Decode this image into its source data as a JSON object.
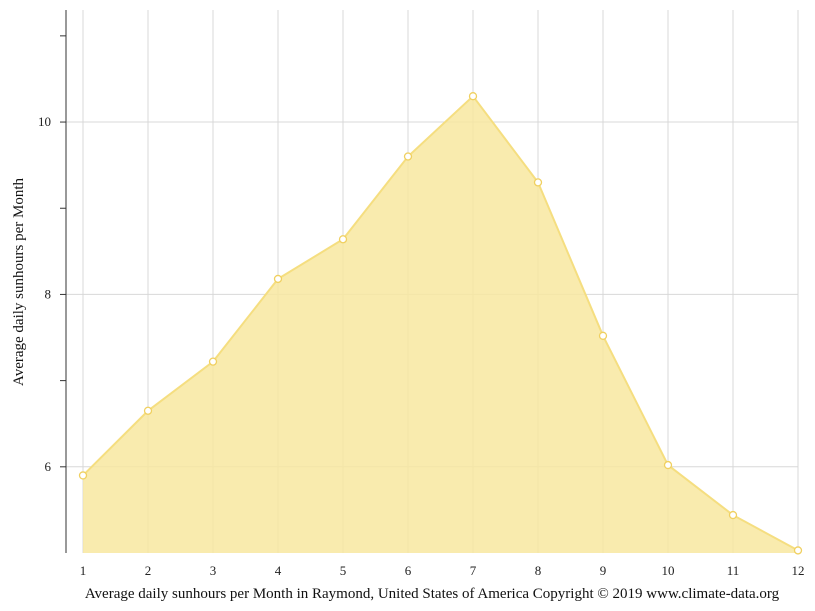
{
  "chart_data": {
    "type": "area",
    "x": [
      1,
      2,
      3,
      4,
      5,
      6,
      7,
      8,
      9,
      10,
      11,
      12
    ],
    "x_tick_labels": [
      "1",
      "2",
      "3",
      "4",
      "5",
      "6",
      "7",
      "8",
      "9",
      "10",
      "11",
      "12"
    ],
    "series": [
      {
        "values": [
          5.9,
          6.65,
          7.22,
          8.18,
          8.64,
          9.6,
          10.3,
          9.3,
          7.52,
          6.02,
          5.44,
          5.03
        ]
      }
    ],
    "ylabel": "Average daily sunhours per Month",
    "caption": "Average daily sunhours per Month in Raymond, United States of America Copyright © 2019 www.climate-data.org",
    "ylim": [
      5,
      11.3
    ],
    "xlim": [
      1,
      12
    ],
    "y_ticks": [
      6,
      8,
      10
    ],
    "y_tick_labels": [
      "6",
      "8",
      "10"
    ],
    "y_minor_ticks": [
      7,
      9,
      11
    ],
    "grid": true,
    "colors": {
      "fill": "#f8e8a0",
      "line": "#f5de80",
      "marker_stroke": "#f0d060",
      "marker_fill": "#ffffff",
      "grid": "#d8d8d8",
      "axis": "#333333"
    }
  }
}
